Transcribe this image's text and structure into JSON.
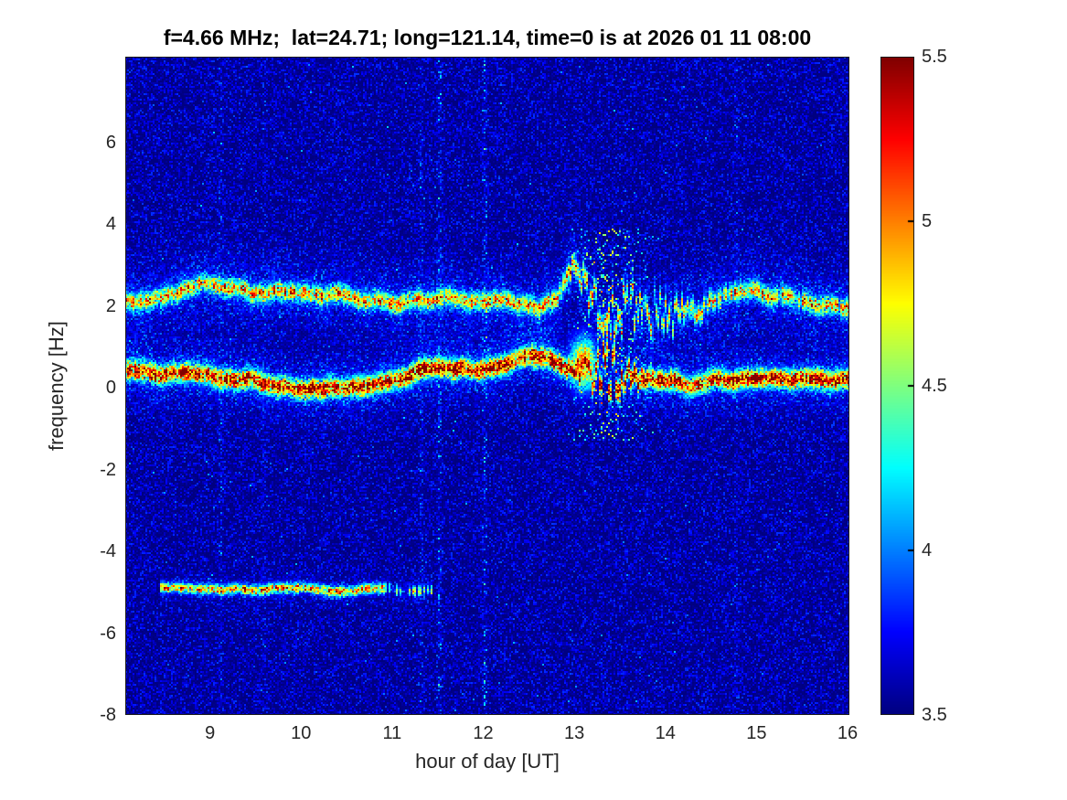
{
  "chart_data": {
    "type": "heatmap",
    "title": "f=4.66 MHz;  lat=24.71; long=121.14, time=0 is at 2026 01 11 08:00",
    "xlabel": "hour of day [UT]",
    "ylabel": "frequency [Hz]",
    "xlim": [
      8.07,
      16.02
    ],
    "ylim": [
      -8,
      8.1
    ],
    "xticks": [
      9,
      10,
      11,
      12,
      13,
      14,
      15,
      16
    ],
    "yticks": [
      -8,
      -6,
      -4,
      -2,
      0,
      2,
      4,
      6
    ],
    "colormap": "jet",
    "colorbar": {
      "min": 3.5,
      "max": 5.5,
      "ticks": [
        3.5,
        4,
        4.5,
        5,
        5.5
      ]
    },
    "noise_floor": 3.5,
    "bands": [
      {
        "label": "upper Doppler trace",
        "y_center": 2.25,
        "x_start": 8.07,
        "x_end": 16.02,
        "core_width": 0.14,
        "amplitude": 1.35,
        "glow": 0.38,
        "glow_width": 0.55,
        "wiggle": 0.4
      },
      {
        "label": "main Doppler trace",
        "y_center": 0.35,
        "x_start": 8.07,
        "x_end": 16.02,
        "core_width": 0.15,
        "amplitude": 1.85,
        "glow": 0.42,
        "glow_width": 0.5,
        "wiggle": 0.3
      },
      {
        "label": "interference trace",
        "y_center": -5.0,
        "x_start": 8.45,
        "x_end": 11.45,
        "core_width": 0.08,
        "amplitude": 1.55,
        "glow": 0.15,
        "glow_width": 0.22,
        "wiggle": 0.12
      }
    ],
    "disturbance": {
      "x_start": 12.9,
      "x_end": 14.05,
      "x_center": 13.4,
      "y_min": -1.3,
      "y_max": 3.9,
      "spike_hour": 13.0,
      "spike_height": 1.1,
      "blob_hour": 13.1,
      "blob_freq": 0.6,
      "blob_intensity": 1.9
    },
    "vertical_streaks": [
      {
        "hour": 9.12,
        "strength": 0.16
      },
      {
        "hour": 9.6,
        "strength": 0.12
      },
      {
        "hour": 11.32,
        "strength": 0.18
      },
      {
        "hour": 11.52,
        "strength": 0.25
      },
      {
        "hour": 12.02,
        "strength": 0.3
      },
      {
        "hour": 14.78,
        "strength": 0.12
      }
    ]
  }
}
